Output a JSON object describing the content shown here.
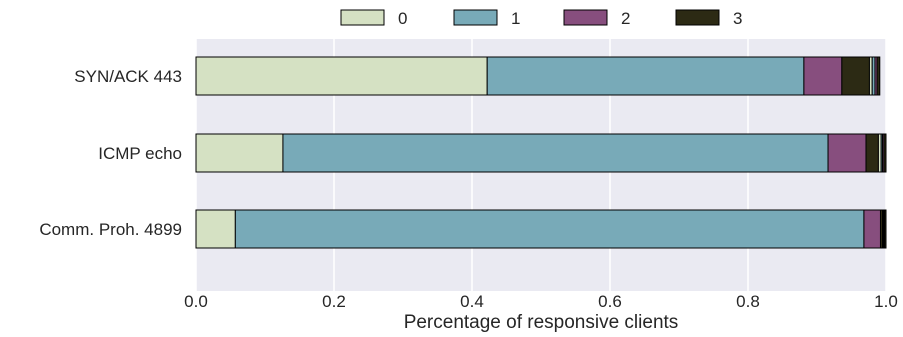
{
  "chart_data": {
    "type": "bar",
    "orientation": "horizontal",
    "stacked": true,
    "title": "",
    "xlabel": "Percentage of responsive clients",
    "ylabel": "",
    "xlim": [
      0.0,
      1.0
    ],
    "xticks": [
      "0.0",
      "0.2",
      "0.4",
      "0.6",
      "0.8",
      "1.0"
    ],
    "grid": true,
    "legend_position": "top",
    "categories": [
      "SYN/ACK 443",
      "ICMP echo",
      "Comm. Proh. 4899"
    ],
    "series": [
      {
        "name": "0",
        "color": "#d5e1c3",
        "values": [
          0.422,
          0.126,
          0.057
        ]
      },
      {
        "name": "1",
        "color": "#78aab8",
        "values": [
          0.459,
          0.79,
          0.911
        ]
      },
      {
        "name": "2",
        "color": "#874e7e",
        "values": [
          0.055,
          0.055,
          0.024
        ]
      },
      {
        "name": "3",
        "color": "#2c2a14",
        "values": [
          0.04,
          0.018,
          0.003
        ]
      }
    ],
    "minor_segments": [
      {
        "color": "#d5e1c3",
        "values": [
          0.004,
          0.004,
          0.001
        ]
      },
      {
        "color": "#78aab8",
        "values": [
          0.004,
          0.002,
          0.001
        ]
      },
      {
        "color": "#874e7e",
        "values": [
          0.003,
          0.002,
          0.001
        ]
      },
      {
        "color": "#2c2a14",
        "values": [
          0.004,
          0.003,
          0.002
        ]
      }
    ],
    "colors": {
      "plot_background": "#eaeaf2",
      "grid": "#ffffff",
      "edge": "#000000"
    }
  }
}
